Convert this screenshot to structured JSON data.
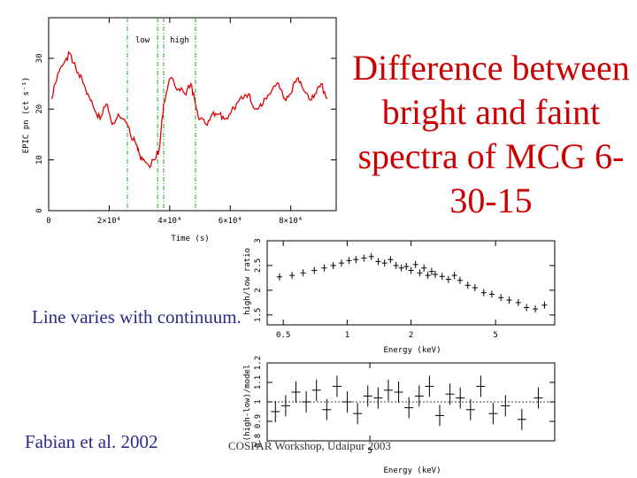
{
  "slide": {
    "title": "Difference between bright and faint spectra of MCG 6-30-15",
    "note": "Line varies with continuum.",
    "citation": "Fabian et al. 2002",
    "footer": "COSPAR Workshop, Udaipur 2003"
  },
  "chart_data": [
    {
      "type": "line",
      "xlabel": "Time (s)",
      "ylabel": "EPIC pn (ct s⁻¹)",
      "xlim": [
        0,
        95000
      ],
      "ylim": [
        0,
        38
      ],
      "x_ticks": [
        "0",
        "2×10⁴",
        "4×10⁴",
        "6×10⁴",
        "8×10⁴"
      ],
      "x_tick_values": [
        0,
        20000,
        40000,
        60000,
        80000
      ],
      "y_ticks": [
        "0",
        "10",
        "20",
        "30"
      ],
      "y_tick_values": [
        0,
        10,
        20,
        30
      ],
      "region_labels": [
        "low",
        "high"
      ],
      "region_bounds": [
        [
          26000,
          36000
        ],
        [
          38000,
          48500
        ]
      ],
      "x": [
        1000,
        3000,
        5000,
        7000,
        9000,
        11000,
        13000,
        15000,
        17000,
        19000,
        21000,
        23000,
        25000,
        27000,
        29000,
        30000,
        31000,
        33000,
        35000,
        36500,
        38000,
        40000,
        43000,
        45000,
        47000,
        48500,
        50000,
        52000,
        54000,
        56000,
        58000,
        60000,
        62000,
        64000,
        66000,
        68000,
        70000,
        72000,
        74000,
        76000,
        78000,
        80000,
        82000,
        84000,
        86000,
        88000,
        90000,
        92000
      ],
      "y": [
        22,
        27,
        29,
        31,
        28,
        26,
        23,
        20,
        18,
        21,
        17,
        19,
        18,
        15,
        13,
        11,
        10,
        9,
        10,
        12,
        21,
        26,
        24,
        23,
        25,
        21,
        18,
        17,
        19,
        19,
        18,
        19,
        21,
        22,
        23,
        20,
        21,
        22,
        24,
        25,
        22,
        23,
        26,
        24,
        22,
        23,
        25,
        22
      ],
      "color": "#dd0000"
    },
    {
      "type": "scatter",
      "xlabel": "Energy (keV)",
      "ylabel": "high/low ratio",
      "x_scale": "log",
      "xlim": [
        0.42,
        9.5
      ],
      "ylim": [
        1.3,
        3.0
      ],
      "x_ticks": [
        "0.5",
        "1",
        "2",
        "5"
      ],
      "x_tick_values": [
        0.5,
        1,
        2,
        5
      ],
      "y_ticks": [
        "1.5",
        "2",
        "2.5",
        "3"
      ],
      "y_tick_values": [
        1.5,
        2,
        2.5,
        3
      ],
      "x": [
        0.48,
        0.55,
        0.62,
        0.7,
        0.78,
        0.86,
        0.94,
        1.02,
        1.1,
        1.2,
        1.3,
        1.4,
        1.5,
        1.6,
        1.7,
        1.8,
        1.9,
        2.0,
        2.1,
        2.2,
        2.3,
        2.4,
        2.5,
        2.6,
        2.8,
        3.0,
        3.2,
        3.4,
        3.7,
        4.0,
        4.4,
        4.8,
        5.3,
        5.8,
        6.4,
        7.0,
        7.7,
        8.5
      ],
      "y": [
        2.27,
        2.3,
        2.35,
        2.4,
        2.45,
        2.5,
        2.55,
        2.6,
        2.62,
        2.65,
        2.68,
        2.58,
        2.55,
        2.62,
        2.5,
        2.45,
        2.48,
        2.4,
        2.52,
        2.35,
        2.45,
        2.3,
        2.38,
        2.32,
        2.28,
        2.22,
        2.3,
        2.2,
        2.1,
        2.05,
        1.95,
        1.92,
        1.85,
        1.8,
        1.75,
        1.65,
        1.62,
        1.7
      ],
      "color": "#000000"
    },
    {
      "type": "scatter",
      "xlabel": "Energy (keV)",
      "ylabel": "(high-low)/model",
      "x_scale": "linear",
      "xlim": [
        2.5,
        9.5
      ],
      "ylim": [
        0.8,
        1.2
      ],
      "x_ticks": [
        "5"
      ],
      "x_tick_values": [
        5
      ],
      "y_ticks": [
        "0.8",
        "0.9",
        "1",
        "1.1",
        "1.2"
      ],
      "y_tick_values": [
        0.8,
        0.9,
        1.0,
        1.1,
        1.2
      ],
      "x": [
        2.7,
        2.95,
        3.2,
        3.45,
        3.7,
        3.95,
        4.2,
        4.45,
        4.7,
        4.95,
        5.2,
        5.45,
        5.7,
        5.95,
        6.2,
        6.45,
        6.7,
        6.95,
        7.2,
        7.45,
        7.7,
        8.0,
        8.3,
        8.7,
        9.1
      ],
      "y": [
        0.95,
        0.98,
        1.05,
        1.0,
        1.06,
        0.96,
        1.08,
        1.0,
        0.94,
        1.03,
        1.02,
        1.06,
        1.05,
        0.97,
        1.03,
        1.08,
        0.93,
        1.04,
        1.02,
        0.96,
        1.08,
        0.94,
        0.98,
        0.91,
        1.02
      ],
      "reference_line": 1.0,
      "color": "#000000"
    }
  ]
}
